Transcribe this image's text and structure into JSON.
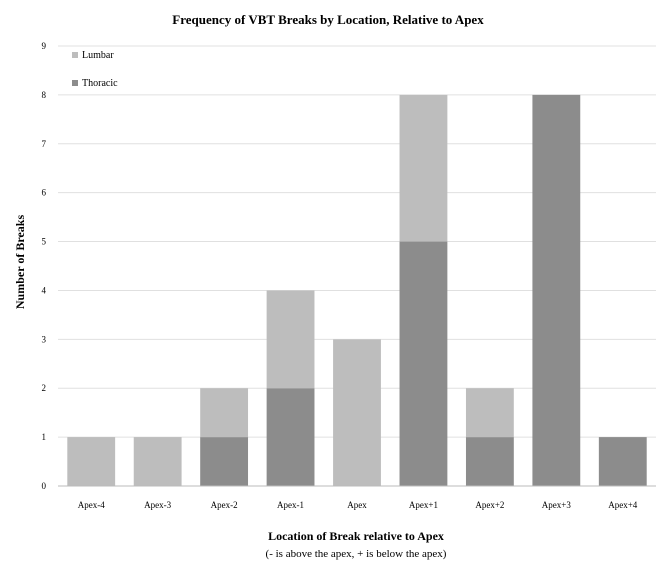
{
  "chart_data": {
    "type": "bar",
    "stacked": true,
    "title": "Frequency of VBT Breaks by Location, Relative to Apex",
    "xlabel": "Location of Break relative to Apex",
    "xlabel_sub": "(- is above the apex, + is below the apex)",
    "ylabel": "Number of Breaks",
    "ylim": [
      0,
      9
    ],
    "yticks": [
      0,
      1,
      2,
      3,
      4,
      5,
      6,
      7,
      8,
      9
    ],
    "grid": true,
    "legend_position": "top-left",
    "categories": [
      "Apex-4",
      "Apex-3",
      "Apex-2",
      "Apex-1",
      "Apex",
      "Apex+1",
      "Apex+2",
      "Apex+3",
      "Apex+4"
    ],
    "series": [
      {
        "name": "Thoracic",
        "color": "#8c8c8c",
        "values": [
          0,
          0,
          1,
          2,
          0,
          5,
          1,
          8,
          1
        ]
      },
      {
        "name": "Lumbar",
        "color": "#bdbdbd",
        "values": [
          1,
          1,
          1,
          2,
          3,
          3,
          1,
          0,
          0
        ]
      }
    ],
    "legend_order": [
      "Lumbar",
      "Thoracic"
    ]
  }
}
